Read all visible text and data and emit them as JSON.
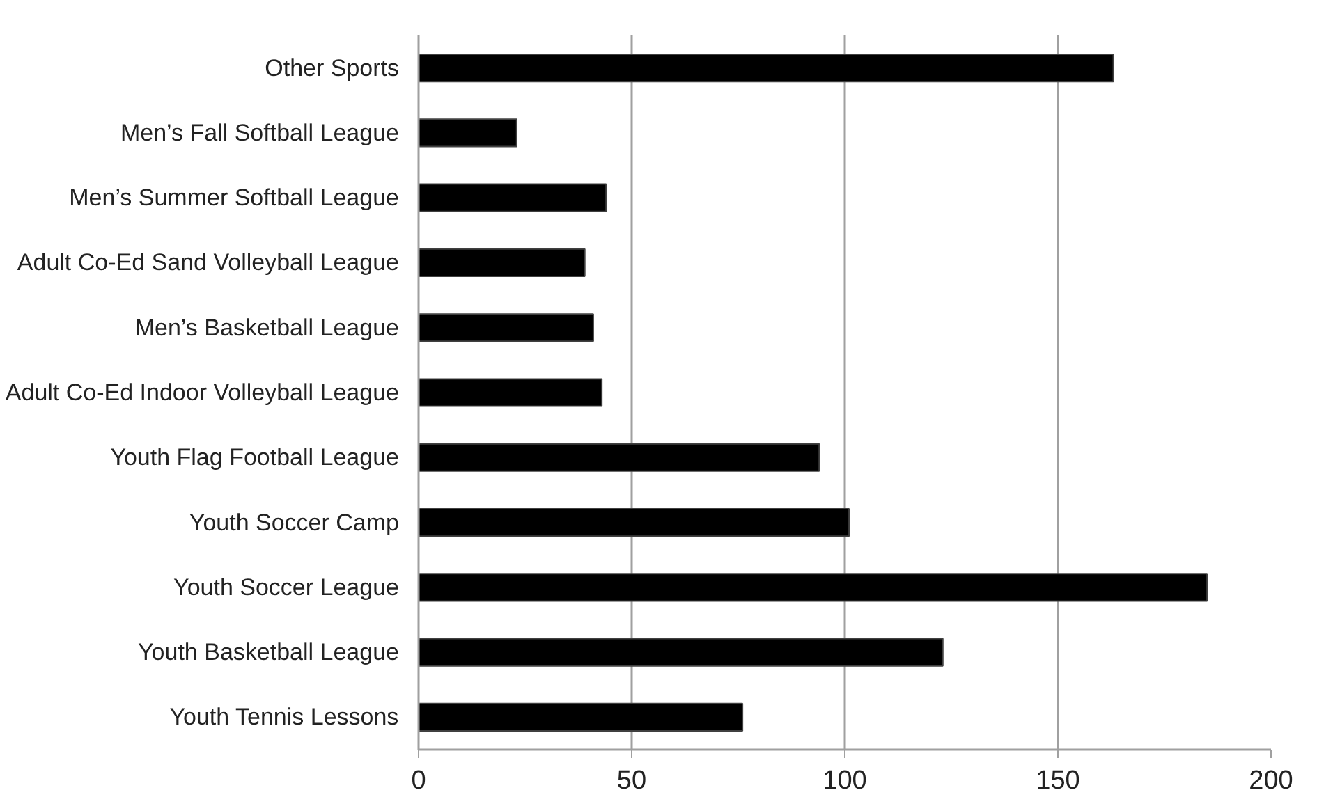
{
  "chart_data": {
    "type": "bar",
    "orientation": "horizontal",
    "categories": [
      "Other Sports",
      "Men’s Fall Softball League",
      "Men’s Summer Softball League",
      "Adult Co-Ed Sand Volleyball League",
      "Men’s Basketball League",
      "Adult Co-Ed Indoor Volleyball League",
      "Youth Flag Football League",
      "Youth Soccer Camp",
      "Youth Soccer League",
      "Youth Basketball League",
      "Youth Tennis Lessons"
    ],
    "values": [
      163,
      23,
      44,
      39,
      41,
      43,
      94,
      101,
      185,
      123,
      76
    ],
    "color": "#000000",
    "xlim": [
      0,
      200
    ],
    "xticks": [
      0,
      50,
      100,
      150,
      200
    ],
    "grid": "x"
  }
}
